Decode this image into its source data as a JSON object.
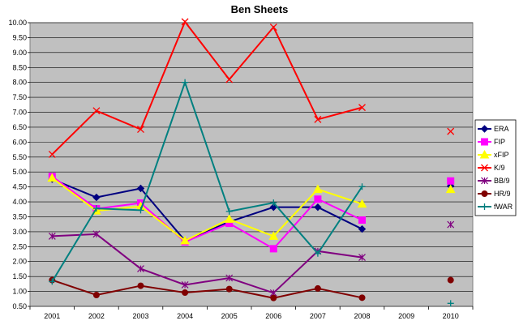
{
  "chart_data": {
    "type": "line",
    "title": "Ben Sheets",
    "xlabel": "",
    "ylabel": "",
    "categories": [
      "2001",
      "2002",
      "2003",
      "2004",
      "2005",
      "2006",
      "2007",
      "2008",
      "2009",
      "2010"
    ],
    "ylim": [
      0.5,
      10.0
    ],
    "ytick_labels": [
      "0.50",
      "1.00",
      "1.50",
      "2.00",
      "2.50",
      "3.00",
      "3.50",
      "4.00",
      "4.50",
      "5.00",
      "5.50",
      "6.00",
      "6.50",
      "7.00",
      "7.50",
      "8.00",
      "8.50",
      "9.00",
      "9.50",
      "10.00"
    ],
    "grid": "horizontal",
    "plot_background": "#c0c0c0",
    "legend_position": "right",
    "series": [
      {
        "name": "ERA",
        "color": "#000080",
        "marker": "diamond",
        "values": [
          4.76,
          4.15,
          4.45,
          2.7,
          3.33,
          3.82,
          3.82,
          3.09,
          null,
          4.53
        ]
      },
      {
        "name": "FIP",
        "color": "#ff00ff",
        "marker": "square",
        "values": [
          4.85,
          3.77,
          3.96,
          2.66,
          3.28,
          2.43,
          4.09,
          3.39,
          null,
          4.7
        ]
      },
      {
        "name": "xFIP",
        "color": "#ffff00",
        "marker": "triangle",
        "values": [
          4.8,
          3.7,
          3.85,
          2.7,
          3.42,
          2.85,
          4.42,
          3.93,
          null,
          4.42
        ]
      },
      {
        "name": "K/9",
        "color": "#ff0000",
        "marker": "x",
        "values": [
          5.59,
          7.05,
          6.43,
          10.03,
          8.1,
          9.85,
          6.76,
          7.16,
          null,
          6.36
        ]
      },
      {
        "name": "BB/9",
        "color": "#800080",
        "marker": "star",
        "values": [
          2.85,
          2.92,
          1.76,
          1.22,
          1.45,
          0.95,
          2.35,
          2.14,
          null,
          3.24
        ]
      },
      {
        "name": "HR/9",
        "color": "#800000",
        "marker": "circle",
        "values": [
          1.38,
          0.88,
          1.19,
          0.96,
          1.08,
          0.78,
          1.1,
          0.79,
          null,
          1.38
        ]
      },
      {
        "name": "fWAR",
        "color": "#008080",
        "marker": "plus",
        "values": [
          1.33,
          3.78,
          3.72,
          8.0,
          3.68,
          3.97,
          2.27,
          4.51,
          null,
          0.6
        ]
      }
    ]
  }
}
